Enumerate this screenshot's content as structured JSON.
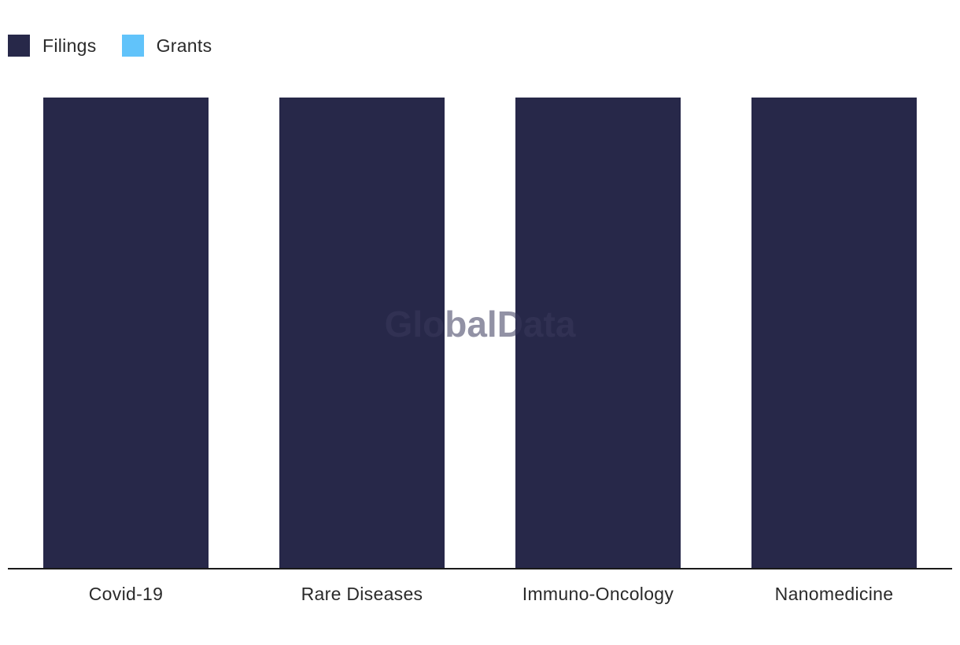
{
  "legend": {
    "items": [
      {
        "label": "Filings",
        "color": "#272849"
      },
      {
        "label": "Grants",
        "color": "#61c3fa"
      }
    ]
  },
  "watermark": "GlobalData",
  "chart_data": {
    "type": "bar",
    "categories": [
      "Covid-19",
      "Rare Diseases",
      "Immuno-Oncology",
      "Nanomedicine"
    ],
    "series": [
      {
        "name": "Filings",
        "color": "#272849",
        "values": [
          1,
          1,
          1,
          1
        ]
      },
      {
        "name": "Grants",
        "color": "#61c3fa",
        "values": [
          0,
          0,
          0,
          0
        ]
      }
    ],
    "stacked": true,
    "ylim": [
      0,
      1
    ],
    "grid": false,
    "legend_position": "top-left",
    "title": "",
    "xlabel": "",
    "ylabel": ""
  }
}
